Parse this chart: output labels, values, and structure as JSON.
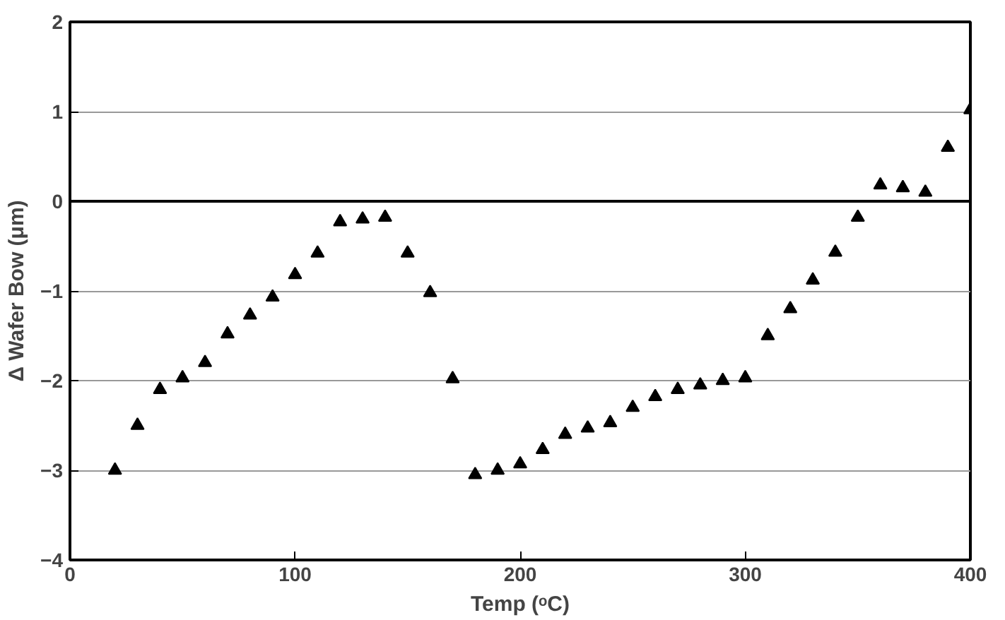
{
  "chart_data": {
    "type": "scatter",
    "xlabel": "Temp (ᵒC)",
    "ylabel": "Δ Wafer Bow (μm)",
    "x": [
      20,
      30,
      40,
      50,
      60,
      70,
      80,
      90,
      100,
      110,
      120,
      130,
      140,
      150,
      160,
      170,
      180,
      190,
      200,
      210,
      220,
      230,
      240,
      250,
      260,
      270,
      280,
      290,
      300,
      310,
      320,
      330,
      340,
      350,
      360,
      370,
      380,
      390,
      400
    ],
    "series": [
      {
        "color": "#000000",
        "values": [
          -3.0,
          -2.5,
          -2.1,
          -1.97,
          -1.8,
          -1.48,
          -1.27,
          -1.07,
          -0.82,
          -0.58,
          -0.23,
          -0.2,
          -0.18,
          -0.58,
          -1.02,
          -1.98,
          -3.05,
          -3.0,
          -2.93,
          -2.77,
          -2.6,
          -2.53,
          -2.47,
          -2.3,
          -2.18,
          -2.1,
          -2.05,
          -2.0,
          -1.97,
          -1.5,
          -1.2,
          -0.88,
          -0.57,
          -0.18,
          0.18,
          0.15,
          0.1,
          0.6,
          1.02
        ]
      }
    ],
    "xlim": [
      0,
      400
    ],
    "xticks": [
      0,
      100,
      200,
      300,
      400
    ],
    "ylim": [
      -4,
      2
    ],
    "yticks": [
      -4,
      -3,
      -2,
      -1,
      0,
      1,
      2
    ],
    "grid": "y",
    "marker": "triangle",
    "ref_lines": [
      {
        "axis": "y",
        "value": 0,
        "color": "#000000"
      }
    ]
  }
}
